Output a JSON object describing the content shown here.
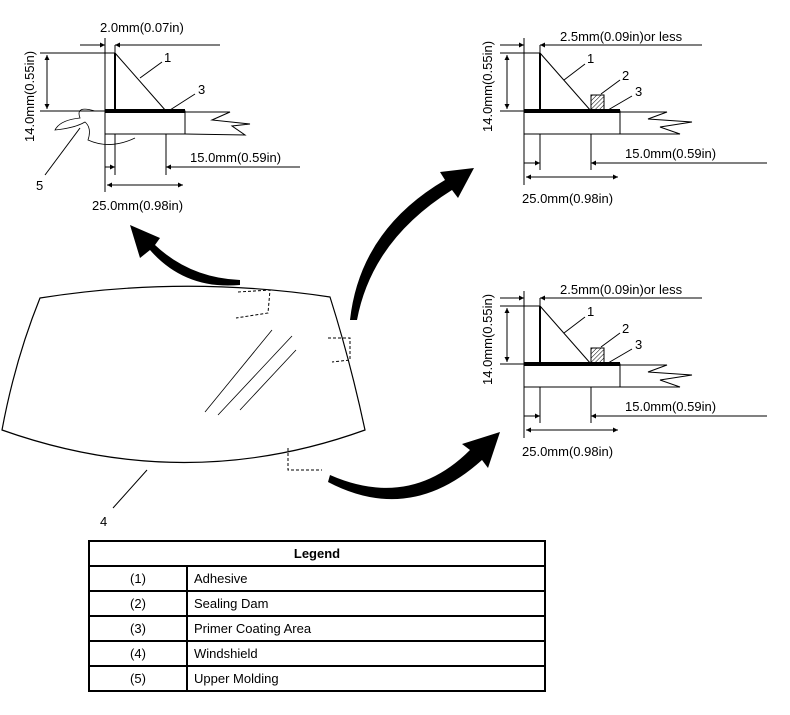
{
  "details": {
    "upper": {
      "gap": "2.0mm(0.07in)",
      "height": "14.0mm(0.55in)",
      "inner": "15.0mm(0.59in)",
      "width": "25.0mm(0.98in)",
      "callouts": [
        "1",
        "3",
        "5"
      ]
    },
    "side": {
      "gap": "2.5mm(0.09in)or less",
      "height": "14.0mm(0.55in)",
      "inner": "15.0mm(0.59in)",
      "width": "25.0mm(0.98in)",
      "callouts": [
        "1",
        "2",
        "3"
      ]
    },
    "lower": {
      "gap": "2.5mm(0.09in)or less",
      "height": "14.0mm(0.55in)",
      "inner": "15.0mm(0.59in)",
      "width": "25.0mm(0.98in)",
      "callouts": [
        "1",
        "2",
        "3"
      ]
    }
  },
  "windshield_callout": "4",
  "legend": {
    "title": "Legend",
    "rows": [
      {
        "num": "(1)",
        "label": "Adhesive"
      },
      {
        "num": "(2)",
        "label": "Sealing Dam"
      },
      {
        "num": "(3)",
        "label": "Primer Coating Area"
      },
      {
        "num": "(4)",
        "label": "Windshield"
      },
      {
        "num": "(5)",
        "label": "Upper Molding"
      }
    ]
  }
}
